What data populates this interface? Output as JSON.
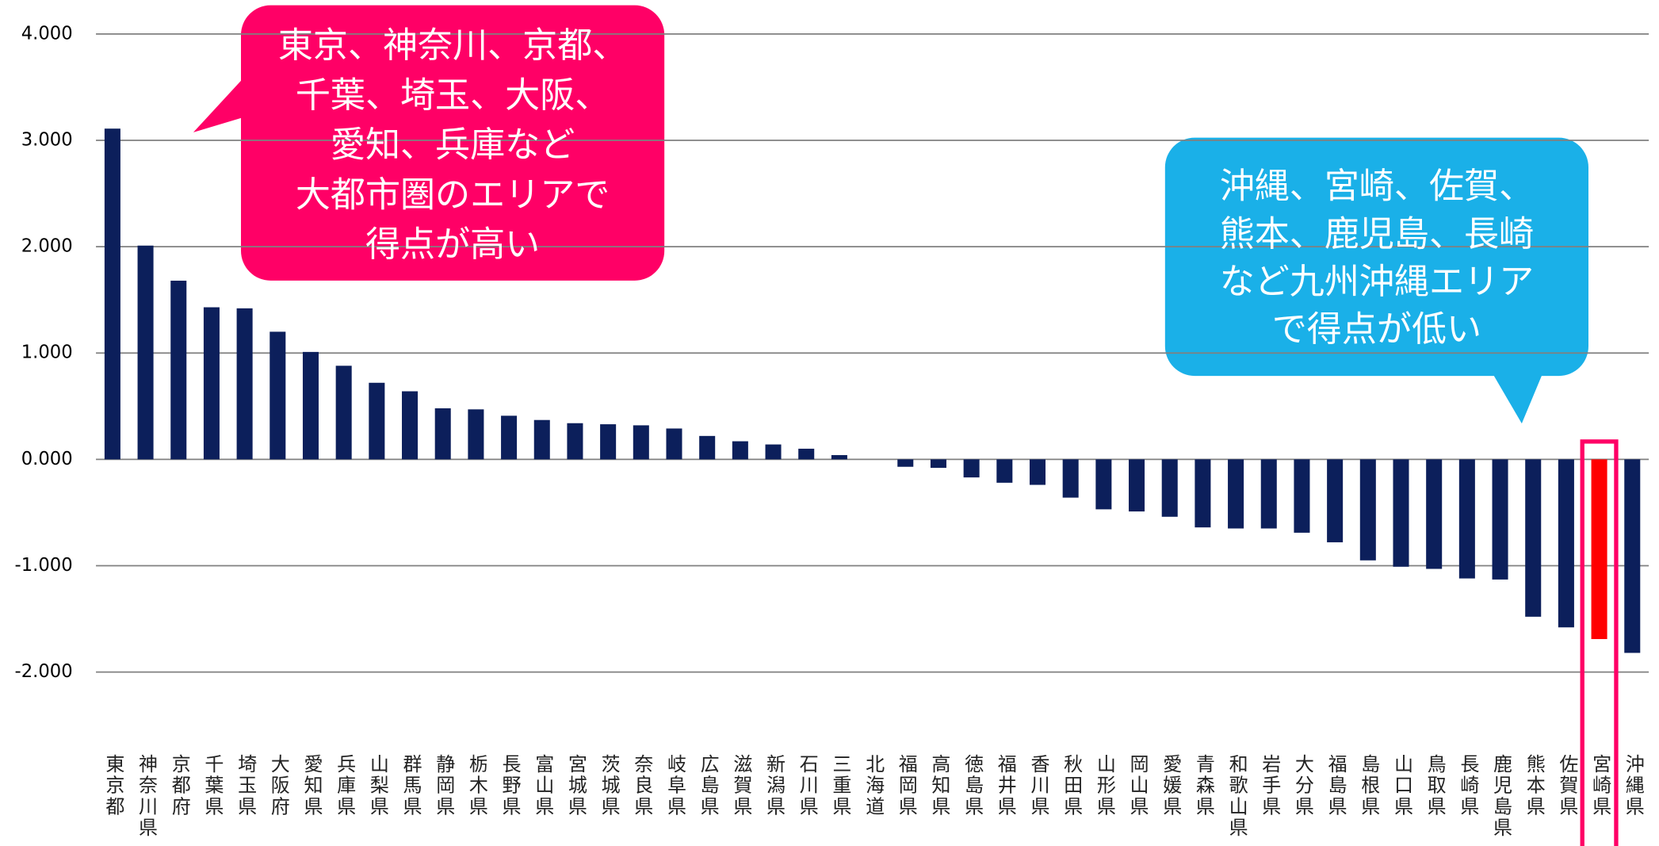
{
  "chart_data": {
    "type": "bar",
    "categories": [
      "東京都",
      "神奈川県",
      "京都府",
      "千葉県",
      "埼玉県",
      "大阪府",
      "愛知県",
      "兵庫県",
      "山梨県",
      "群馬県",
      "静岡県",
      "栃木県",
      "長野県",
      "富山県",
      "宮城県",
      "茨城県",
      "奈良県",
      "岐阜県",
      "広島県",
      "滋賀県",
      "新潟県",
      "石川県",
      "三重県",
      "北海道",
      "福岡県",
      "高知県",
      "徳島県",
      "福井県",
      "香川県",
      "秋田県",
      "山形県",
      "岡山県",
      "愛媛県",
      "青森県",
      "和歌山県",
      "岩手県",
      "大分県",
      "福島県",
      "島根県",
      "山口県",
      "鳥取県",
      "長崎県",
      "鹿児島県",
      "熊本県",
      "佐賀県",
      "宮崎県",
      "沖縄県"
    ],
    "values": [
      3.11,
      2.01,
      1.68,
      1.43,
      1.42,
      1.2,
      1.01,
      0.88,
      0.72,
      0.64,
      0.48,
      0.47,
      0.41,
      0.37,
      0.34,
      0.33,
      0.32,
      0.29,
      0.22,
      0.17,
      0.14,
      0.1,
      0.04,
      0.0,
      -0.07,
      -0.08,
      -0.17,
      -0.22,
      -0.24,
      -0.36,
      -0.47,
      -0.49,
      -0.54,
      -0.64,
      -0.65,
      -0.65,
      -0.69,
      -0.78,
      -0.95,
      -1.01,
      -1.03,
      -1.12,
      -1.13,
      -1.48,
      -1.58,
      -1.69,
      -1.82
    ],
    "colors": [
      "#0c1f5b",
      "#0c1f5b",
      "#0c1f5b",
      "#0c1f5b",
      "#0c1f5b",
      "#0c1f5b",
      "#0c1f5b",
      "#0c1f5b",
      "#0c1f5b",
      "#0c1f5b",
      "#0c1f5b",
      "#0c1f5b",
      "#0c1f5b",
      "#0c1f5b",
      "#0c1f5b",
      "#0c1f5b",
      "#0c1f5b",
      "#0c1f5b",
      "#0c1f5b",
      "#0c1f5b",
      "#0c1f5b",
      "#0c1f5b",
      "#0c1f5b",
      "#0c1f5b",
      "#0c1f5b",
      "#0c1f5b",
      "#0c1f5b",
      "#0c1f5b",
      "#0c1f5b",
      "#0c1f5b",
      "#0c1f5b",
      "#0c1f5b",
      "#0c1f5b",
      "#0c1f5b",
      "#0c1f5b",
      "#0c1f5b",
      "#0c1f5b",
      "#0c1f5b",
      "#0c1f5b",
      "#0c1f5b",
      "#0c1f5b",
      "#0c1f5b",
      "#0c1f5b",
      "#0c1f5b",
      "#0c1f5b",
      "#ff0000",
      "#0c1f5b"
    ],
    "ylim": [
      -2.7,
      4.2
    ],
    "yticks": [
      {
        "value": -2,
        "label": "-2.000"
      },
      {
        "value": -1,
        "label": "-1.000"
      },
      {
        "value": 0,
        "label": "0.000"
      },
      {
        "value": 1,
        "label": "1.000"
      },
      {
        "value": 2,
        "label": "2.000"
      },
      {
        "value": 3,
        "label": "3.000"
      },
      {
        "value": 4,
        "label": "4.000"
      }
    ],
    "grid": true,
    "annotations": [
      {
        "lines": [
          "東京、神奈川、京都、",
          "千葉、埼玉、大阪、",
          "愛知、兵庫など",
          "大都市圏のエリアで",
          "得点が高い"
        ],
        "color": "#ff0066"
      },
      {
        "lines": [
          "沖縄、宮崎、佐賀、",
          "熊本、鹿児島、長崎",
          "など九州沖縄エリア",
          "で得点が低い"
        ],
        "color": "#1ab0e8"
      }
    ]
  }
}
